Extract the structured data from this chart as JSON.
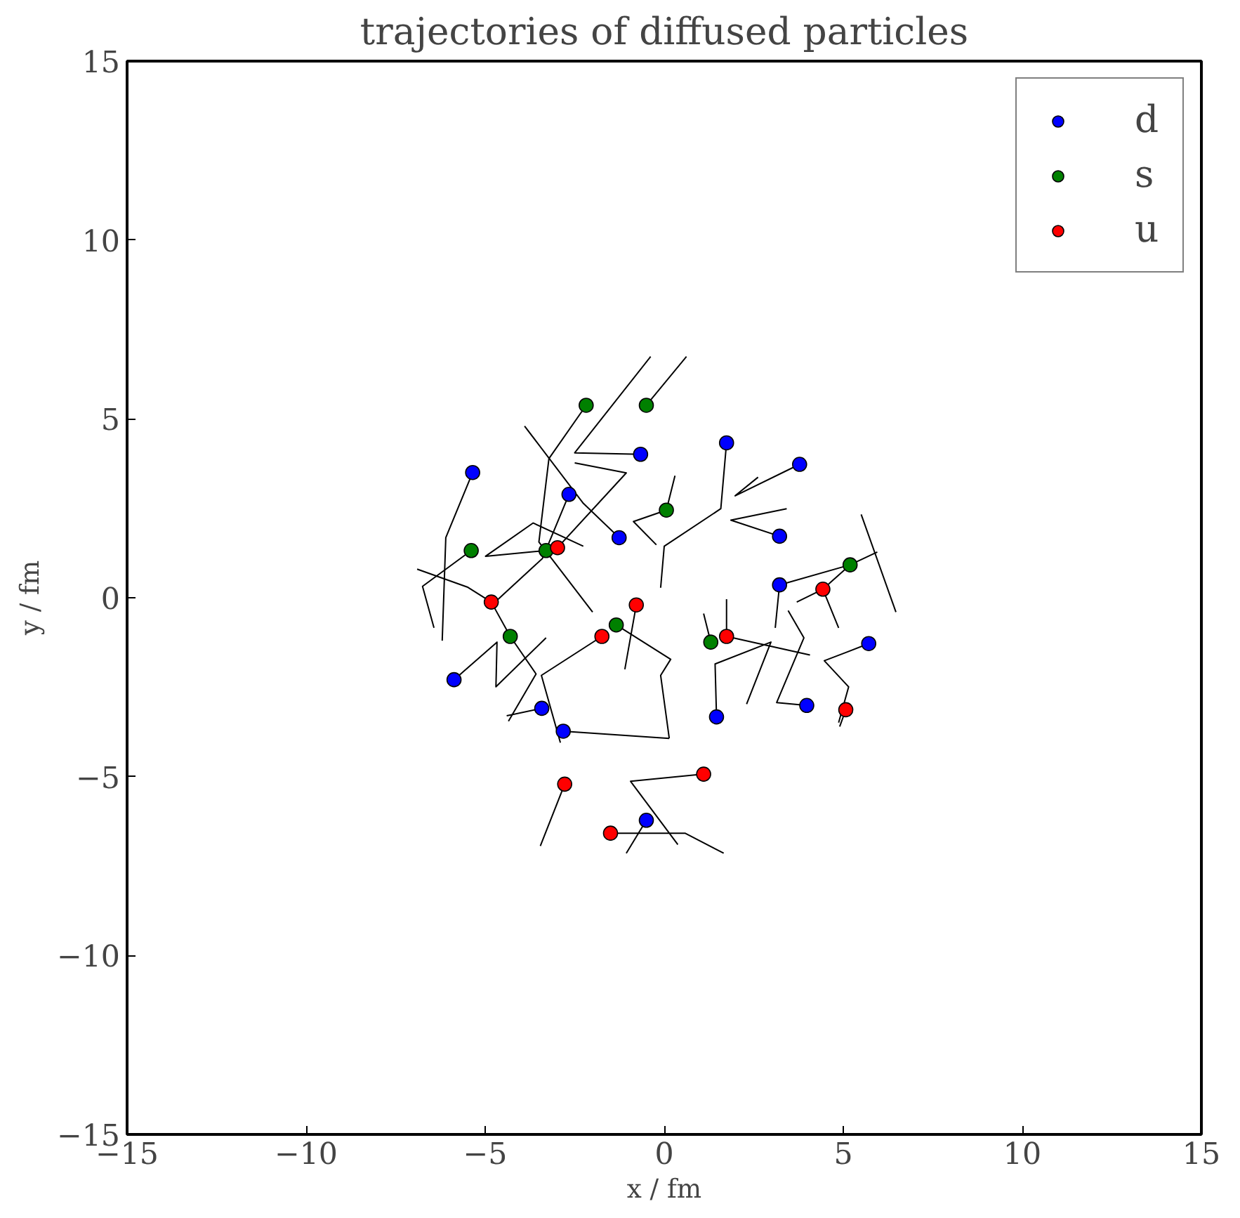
{
  "chart_data": {
    "type": "scatter",
    "title": "trajectories of diffused particles",
    "xlabel": "x / fm",
    "ylabel": "y / fm",
    "xlim": [
      -15,
      15
    ],
    "ylim": [
      -15,
      15
    ],
    "xticks": [
      -15,
      -10,
      -5,
      0,
      5,
      10,
      15
    ],
    "yticks": [
      -15,
      -10,
      -5,
      0,
      5,
      10,
      15
    ],
    "grid": false,
    "legend": "top right",
    "marker": "circle",
    "series": [
      {
        "type": "line",
        "color": "#000000",
        "marker": "none",
        "x": [
          -0.5,
          0.62
        ],
        "values": [
          5.38,
          6.74
        ]
      },
      {
        "type": "line",
        "color": "#000000",
        "marker": "none",
        "x": [
          -0.66,
          -2.5,
          -0.38
        ],
        "values": [
          4.01,
          4.05,
          6.74
        ]
      },
      {
        "type": "line",
        "color": "#000000",
        "marker": "none",
        "x": [
          -2.18,
          -3.22,
          -3.5,
          -2.0
        ],
        "values": [
          5.38,
          3.89,
          1.56,
          -0.4
        ]
      },
      {
        "type": "line",
        "color": "#000000",
        "marker": "none",
        "x": [
          -5.35,
          -6.1,
          -6.2
        ],
        "values": [
          3.5,
          1.68,
          -1.2
        ]
      },
      {
        "type": "line",
        "color": "#000000",
        "marker": "none",
        "x": [
          -2.66,
          -3.4,
          -4.7
        ],
        "values": [
          2.89,
          1.1,
          -0.1
        ]
      },
      {
        "type": "line",
        "color": "#000000",
        "marker": "none",
        "x": [
          -1.26,
          -2.26,
          -3.9
        ],
        "values": [
          1.68,
          2.64,
          4.8
        ]
      },
      {
        "type": "line",
        "color": "#000000",
        "marker": "none",
        "x": [
          1.74,
          1.58,
          0.0,
          -0.1
        ],
        "values": [
          4.33,
          2.49,
          1.44,
          0.28
        ]
      },
      {
        "type": "line",
        "color": "#000000",
        "marker": "none",
        "x": [
          3.78,
          1.98,
          2.62
        ],
        "values": [
          3.73,
          2.85,
          3.37
        ]
      },
      {
        "type": "line",
        "color": "#000000",
        "marker": "none",
        "x": [
          3.22,
          1.86,
          3.42
        ],
        "values": [
          1.72,
          2.17,
          2.49
        ]
      },
      {
        "type": "line",
        "color": "#000000",
        "marker": "none",
        "x": [
          3.1,
          3.22,
          5.19
        ],
        "values": [
          -0.84,
          0.36,
          0.92
        ]
      },
      {
        "type": "line",
        "color": "#000000",
        "marker": "none",
        "x": [
          5.71,
          5.1,
          4.47,
          5.15,
          4.87
        ],
        "values": [
          -1.28,
          -1.52,
          -1.76,
          -2.49,
          -3.49
        ]
      },
      {
        "type": "line",
        "color": "#000000",
        "marker": "none",
        "x": [
          3.98,
          3.14,
          3.9,
          3.46
        ],
        "values": [
          -3.01,
          -2.93,
          -1.12,
          -0.36
        ]
      },
      {
        "type": "line",
        "color": "#000000",
        "marker": "none",
        "x": [
          1.46,
          1.42,
          2.98,
          2.3
        ],
        "values": [
          -3.33,
          -1.85,
          -1.24,
          -2.97
        ]
      },
      {
        "type": "line",
        "color": "#000000",
        "marker": "none",
        "x": [
          1.74,
          1.74
        ],
        "values": [
          -1.08,
          -0.04
        ]
      },
      {
        "type": "line",
        "color": "#000000",
        "marker": "none",
        "x": [
          1.74,
          4.07
        ],
        "values": [
          -1.08,
          -1.6
        ]
      },
      {
        "type": "line",
        "color": "#000000",
        "marker": "none",
        "x": [
          1.3,
          1.1
        ],
        "values": [
          -1.24,
          -0.44
        ]
      },
      {
        "type": "line",
        "color": "#000000",
        "marker": "none",
        "x": [
          1.1,
          -0.94,
          0.38
        ],
        "values": [
          -4.93,
          -5.13,
          -6.9
        ]
      },
      {
        "type": "line",
        "color": "#000000",
        "marker": "none",
        "x": [
          -1.5,
          0.58,
          1.66
        ],
        "values": [
          -6.58,
          -6.58,
          -7.14
        ]
      },
      {
        "type": "line",
        "color": "#000000",
        "marker": "none",
        "x": [
          -0.5,
          -1.06
        ],
        "values": [
          -6.22,
          -7.14
        ]
      },
      {
        "type": "line",
        "color": "#000000",
        "marker": "none",
        "x": [
          -2.78,
          -3.46
        ],
        "values": [
          -5.21,
          -6.94
        ]
      },
      {
        "type": "line",
        "color": "#000000",
        "marker": "none",
        "x": [
          -2.82,
          0.14
        ],
        "values": [
          -3.73,
          -3.93
        ]
      },
      {
        "type": "line",
        "color": "#000000",
        "marker": "none",
        "x": [
          -5.87,
          -4.67,
          -4.7,
          -3.3
        ],
        "values": [
          -2.29,
          -1.24,
          -2.49,
          -1.12
        ]
      },
      {
        "type": "line",
        "color": "#000000",
        "marker": "none",
        "x": [
          -4.3,
          -4.83,
          -5.5,
          -6.9
        ],
        "values": [
          -1.08,
          -0.12,
          0.3,
          0.8
        ]
      },
      {
        "type": "line",
        "color": "#000000",
        "marker": "none",
        "x": [
          -4.3,
          -3.58,
          -4.35
        ],
        "values": [
          -1.08,
          -2.13,
          -3.45
        ]
      },
      {
        "type": "line",
        "color": "#000000",
        "marker": "none",
        "x": [
          -1.74,
          -3.43,
          -2.9
        ],
        "values": [
          -1.08,
          -2.17,
          -4.05
        ]
      },
      {
        "type": "line",
        "color": "#000000",
        "marker": "none",
        "x": [
          -3.42,
          -4.4
        ],
        "values": [
          -3.09,
          -3.3
        ]
      },
      {
        "type": "line",
        "color": "#000000",
        "marker": "none",
        "x": [
          -0.78,
          -1.1
        ],
        "values": [
          -0.2,
          -2.0
        ]
      },
      {
        "type": "line",
        "color": "#000000",
        "marker": "none",
        "x": [
          -1.34,
          0.18,
          -0.1,
          0.14
        ],
        "values": [
          -0.76,
          -1.72,
          -2.17,
          -3.93
        ]
      },
      {
        "type": "line",
        "color": "#000000",
        "marker": "none",
        "x": [
          -5.39,
          -6.15,
          -6.75,
          -6.43
        ],
        "values": [
          1.32,
          0.76,
          0.32,
          -0.84
        ]
      },
      {
        "type": "line",
        "color": "#000000",
        "marker": "none",
        "x": [
          -2.98,
          -1.06,
          -2.5
        ],
        "values": [
          1.4,
          3.49,
          3.77
        ]
      },
      {
        "type": "line",
        "color": "#000000",
        "marker": "none",
        "x": [
          -3.3,
          -4.99,
          -3.66,
          -2.26
        ],
        "values": [
          1.32,
          1.16,
          2.09,
          1.44
        ]
      },
      {
        "type": "line",
        "color": "#000000",
        "marker": "none",
        "x": [
          0.3,
          0.06,
          -0.86,
          -0.22
        ],
        "values": [
          3.41,
          2.45,
          2.13,
          1.48
        ]
      },
      {
        "type": "line",
        "color": "#000000",
        "marker": "none",
        "x": [
          4.43,
          5.19,
          5.95
        ],
        "values": [
          0.24,
          0.92,
          1.28
        ]
      },
      {
        "type": "line",
        "color": "#000000",
        "marker": "none",
        "x": [
          5.5,
          6.47
        ],
        "values": [
          2.33,
          -0.4
        ]
      },
      {
        "type": "line",
        "color": "#000000",
        "marker": "none",
        "x": [
          3.7,
          4.43,
          4.87
        ],
        "values": [
          -0.12,
          0.24,
          -0.84
        ]
      },
      {
        "type": "line",
        "color": "#000000",
        "marker": "none",
        "x": [
          5.07,
          4.9
        ],
        "values": [
          -3.13,
          -3.6
        ]
      },
      {
        "name": "d",
        "color": "#0000ff",
        "x": [
          -5.35,
          -2.66,
          -0.66,
          1.74,
          3.78,
          -1.26,
          3.22,
          3.22,
          5.71,
          -5.87,
          -3.42,
          -2.82,
          1.46,
          3.98,
          -0.5
        ],
        "values": [
          3.5,
          2.89,
          4.01,
          4.33,
          3.73,
          1.68,
          1.72,
          0.36,
          -1.28,
          -2.29,
          -3.09,
          -3.73,
          -3.33,
          -3.01,
          -6.22
        ]
      },
      {
        "name": "s",
        "color": "#008000",
        "x": [
          -2.18,
          -0.5,
          0.06,
          -5.39,
          -3.3,
          5.19,
          -4.3,
          -1.34,
          1.3
        ],
        "values": [
          5.38,
          5.38,
          2.45,
          1.32,
          1.32,
          0.92,
          -1.08,
          -0.76,
          -1.24
        ]
      },
      {
        "name": "u",
        "color": "#ff0000",
        "x": [
          -2.98,
          -4.83,
          -1.74,
          -0.78,
          1.74,
          4.43,
          5.07,
          -2.78,
          1.1,
          -1.5
        ],
        "values": [
          1.4,
          -0.12,
          -1.08,
          -0.2,
          -1.08,
          0.24,
          -3.13,
          -5.21,
          -4.93,
          -6.58
        ]
      }
    ]
  }
}
